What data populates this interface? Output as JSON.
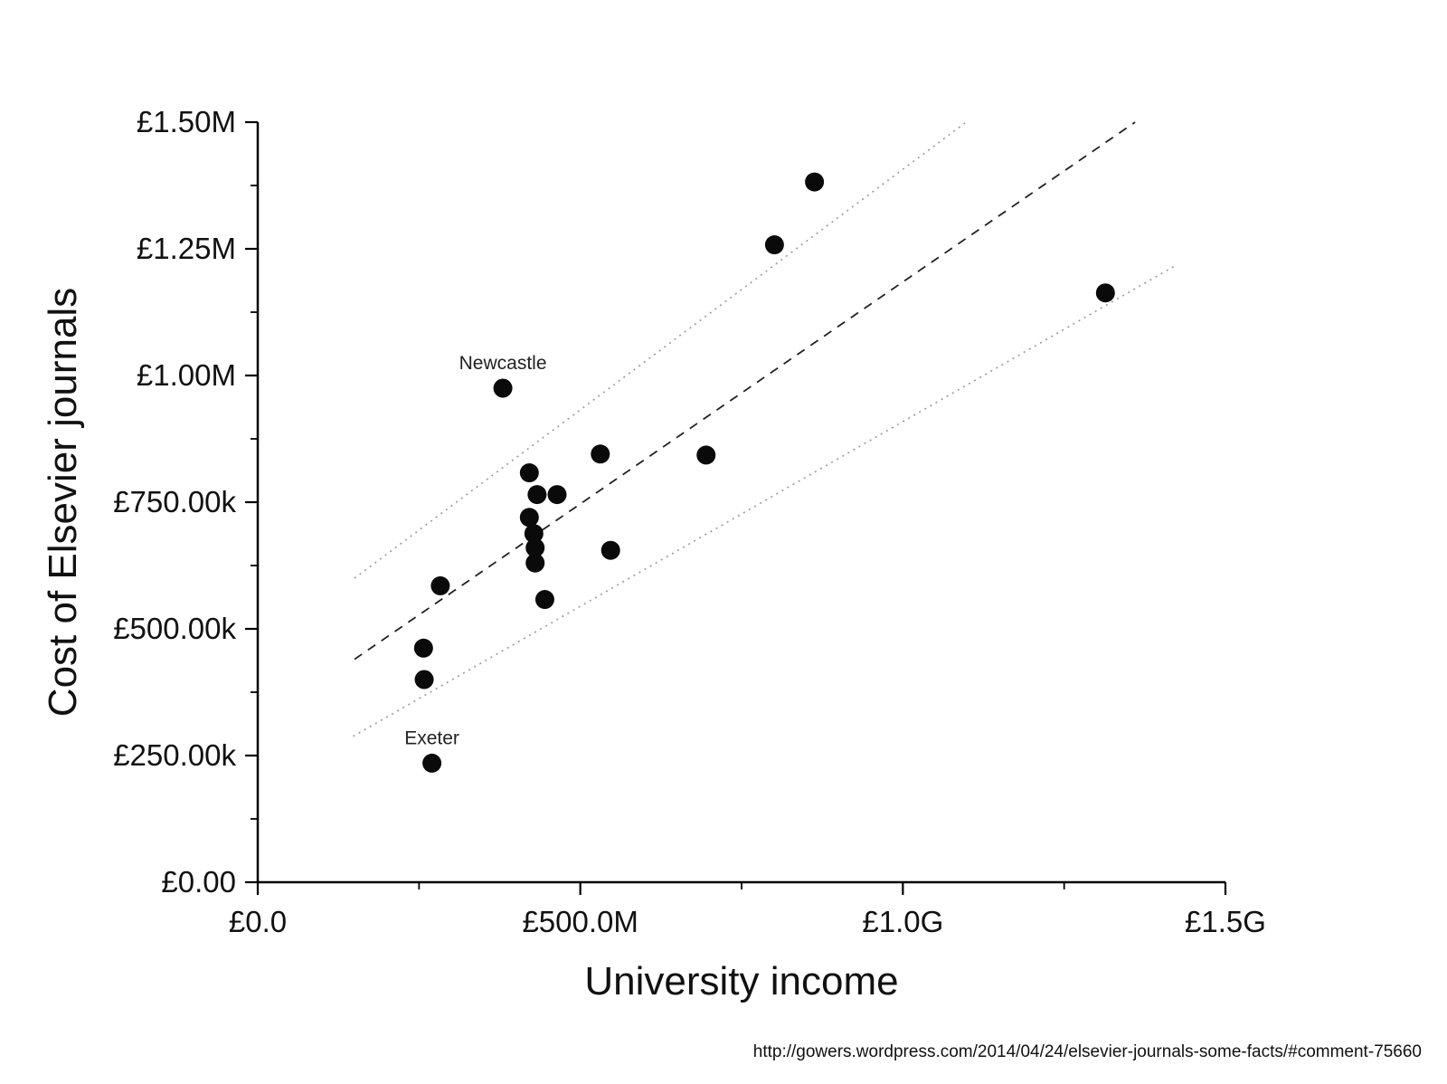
{
  "page": {
    "source_url": "http://gowers.wordpress.com/2014/04/24/elsevier-journals-some-facts/#comment-75660"
  },
  "chart_data": {
    "type": "scatter",
    "title": "",
    "xlabel": "University income",
    "ylabel": "Cost of Elsevier journals",
    "x_axis": {
      "units": "GBP millions",
      "min_m": 0,
      "max_m": 1500,
      "major_ticks": [
        {
          "value_m": 0,
          "label": "£0.0"
        },
        {
          "value_m": 500,
          "label": "£500.0M"
        },
        {
          "value_m": 1000,
          "label": "£1.0G"
        },
        {
          "value_m": 1500,
          "label": "£1.5G"
        }
      ],
      "minor_step_m": 250
    },
    "y_axis": {
      "units": "GBP thousands",
      "min_k": 0,
      "max_k": 1500,
      "major_ticks": [
        {
          "value_k": 0,
          "label": "£0.00"
        },
        {
          "value_k": 250,
          "label": "£250.00k"
        },
        {
          "value_k": 500,
          "label": "£500.00k"
        },
        {
          "value_k": 750,
          "label": "£750.00k"
        },
        {
          "value_k": 1000,
          "label": "£1.00M"
        },
        {
          "value_k": 1250,
          "label": "£1.25M"
        },
        {
          "value_k": 1500,
          "label": "£1.50M"
        }
      ],
      "minor_step_k": 125
    },
    "points": [
      {
        "income_m": 270,
        "cost_k": 235,
        "label": "Exeter"
      },
      {
        "income_m": 258,
        "cost_k": 400
      },
      {
        "income_m": 257,
        "cost_k": 462
      },
      {
        "income_m": 283,
        "cost_k": 585
      },
      {
        "income_m": 380,
        "cost_k": 975,
        "label": "Newcastle"
      },
      {
        "income_m": 421,
        "cost_k": 808
      },
      {
        "income_m": 433,
        "cost_k": 765
      },
      {
        "income_m": 464,
        "cost_k": 765
      },
      {
        "income_m": 421,
        "cost_k": 720
      },
      {
        "income_m": 428,
        "cost_k": 688
      },
      {
        "income_m": 430,
        "cost_k": 660
      },
      {
        "income_m": 430,
        "cost_k": 630
      },
      {
        "income_m": 445,
        "cost_k": 558
      },
      {
        "income_m": 531,
        "cost_k": 845
      },
      {
        "income_m": 547,
        "cost_k": 655
      },
      {
        "income_m": 695,
        "cost_k": 843
      },
      {
        "income_m": 801,
        "cost_k": 1258
      },
      {
        "income_m": 863,
        "cost_k": 1382
      },
      {
        "income_m": 1314,
        "cost_k": 1163
      }
    ],
    "regression_line": {
      "style": "dashed",
      "x1_m": 150,
      "y1_k": 440,
      "x2_m": 1360,
      "y2_k": 1500
    },
    "confidence_band": {
      "style": "dotted",
      "upper": {
        "x1_m": 150,
        "y1_k": 600,
        "x2_m": 1098,
        "y2_k": 1500
      },
      "lower": {
        "x1_m": 148,
        "y1_k": 288,
        "x2_m": 1424,
        "y2_k": 1218
      }
    },
    "legend": "none",
    "grid": "off"
  }
}
